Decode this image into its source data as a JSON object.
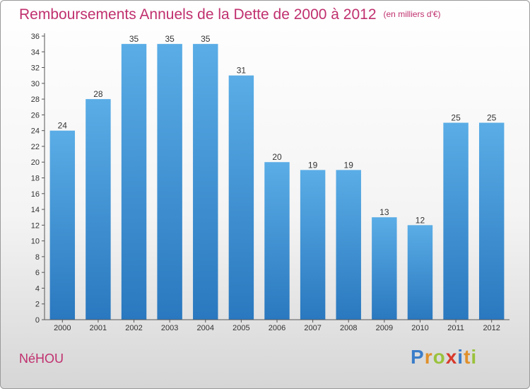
{
  "header": {
    "title": "Remboursements Annuels de la Dette de 2000 à 2012",
    "subtitle": "(en milliers d'€)"
  },
  "footer": {
    "commune": "NéHOU",
    "logo_letters": [
      {
        "ch": "P",
        "color": "#3a7dc9"
      },
      {
        "ch": "r",
        "color": "#e0902a"
      },
      {
        "ch": "o",
        "color": "#9ac23c"
      },
      {
        "ch": "x",
        "color": "#d8392c"
      },
      {
        "ch": "i",
        "color": "#3a7dc9"
      },
      {
        "ch": "t",
        "color": "#e0902a"
      },
      {
        "ch": "i",
        "color": "#9ac23c"
      }
    ]
  },
  "colors": {
    "title": "#c0306e",
    "bar_light": "#5aade6",
    "bar_dark": "#2a78bf"
  },
  "chart_data": {
    "type": "bar",
    "title": "Remboursements Annuels de la Dette de 2000 à 2012",
    "subtitle": "(en milliers d'€)",
    "categories": [
      "2000",
      "2001",
      "2002",
      "2003",
      "2004",
      "2005",
      "2006",
      "2007",
      "2008",
      "2009",
      "2010",
      "2011",
      "2012"
    ],
    "values": [
      24,
      28,
      35,
      35,
      35,
      31,
      20,
      19,
      19,
      13,
      12,
      25,
      25
    ],
    "ylim": [
      0,
      36
    ],
    "yticks": [
      0,
      2,
      4,
      6,
      8,
      10,
      12,
      14,
      16,
      18,
      20,
      22,
      24,
      26,
      28,
      30,
      32,
      34,
      36
    ],
    "grid": false,
    "data_labels": true
  }
}
